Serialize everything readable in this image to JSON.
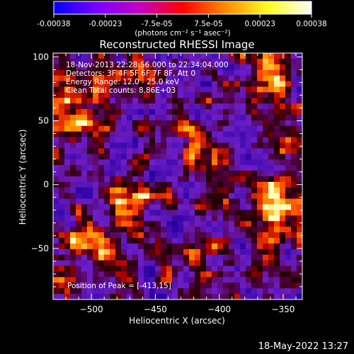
{
  "colorbar": {
    "tick_labels": [
      "-0.00038",
      "-0.00023",
      "-7.5e-05",
      "7.5e-05",
      "0.00023",
      "0.00038"
    ],
    "unit_label": "(photons cm⁻² s⁻¹ asec⁻²)",
    "colors": [
      "#0000ff",
      "#7a00ff",
      "#c400c4",
      "#ff0000",
      "#ff8a00",
      "#ffff20",
      "#ffffff"
    ]
  },
  "chart_data": {
    "type": "heatmap",
    "title": "Reconstructed RHESSI Image",
    "xlabel": "Heliocentric X (arcsec)",
    "ylabel": "Heliocentric Y (arcsec)",
    "xlim": [
      -530,
      -335
    ],
    "ylim": [
      -90,
      103
    ],
    "xticks": [
      -500,
      -450,
      -400,
      -350
    ],
    "yticks": [
      -50,
      0,
      50,
      100
    ],
    "peak_position": [
      -413,
      15
    ],
    "annotations": [
      "18-Nov-2013 22:28:56.000 to 22:34:04.000",
      "Detectors: 3F 4F 5F 6F 7F 8F, Att 0",
      "Energy Range: 12.0 - 25.0 keV",
      "Clean     Total counts: 8.86E+03"
    ],
    "peak_label": "Position of Peak = [-413,15]"
  },
  "footer": {
    "timestamp": "18-May-2022 13:27"
  }
}
